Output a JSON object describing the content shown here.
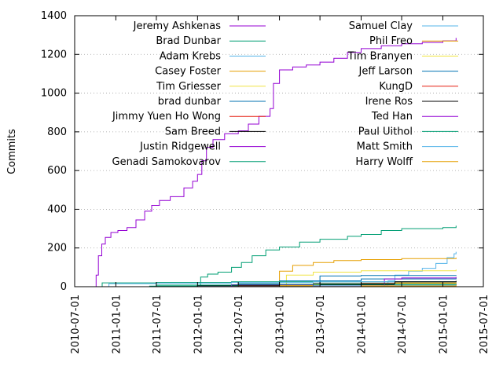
{
  "chart_data": {
    "type": "line",
    "ylabel": "Commits",
    "xlabel": "",
    "ylim": [
      0,
      1400
    ],
    "xlim": [
      "2010-07-01",
      "2015-07-01"
    ],
    "grid": true,
    "legend_position": "top, two columns",
    "x_ticks": [
      "2010-07-01",
      "2011-01-01",
      "2011-07-01",
      "2012-01-01",
      "2012-07-01",
      "2013-01-01",
      "2013-07-01",
      "2014-01-01",
      "2014-07-01",
      "2015-01-01",
      "2015-07-01"
    ],
    "y_ticks": [
      0,
      200,
      400,
      600,
      800,
      1000,
      1200,
      1400
    ],
    "series": [
      {
        "name": "Jeremy Ashkenas",
        "color": "#9400d3",
        "points": [
          [
            "2010-09-30",
            0
          ],
          [
            "2010-10-05",
            60
          ],
          [
            "2010-10-15",
            160
          ],
          [
            "2010-10-30",
            220
          ],
          [
            "2010-11-15",
            255
          ],
          [
            "2010-12-10",
            280
          ],
          [
            "2011-01-10",
            290
          ],
          [
            "2011-02-20",
            305
          ],
          [
            "2011-04-01",
            345
          ],
          [
            "2011-05-10",
            390
          ],
          [
            "2011-06-10",
            420
          ],
          [
            "2011-07-15",
            445
          ],
          [
            "2011-09-01",
            465
          ],
          [
            "2011-11-01",
            510
          ],
          [
            "2011-12-10",
            545
          ],
          [
            "2012-01-01",
            580
          ],
          [
            "2012-01-20",
            650
          ],
          [
            "2012-02-10",
            720
          ],
          [
            "2012-03-10",
            760
          ],
          [
            "2012-05-01",
            790
          ],
          [
            "2012-07-01",
            805
          ],
          [
            "2012-08-15",
            840
          ],
          [
            "2012-10-01",
            880
          ],
          [
            "2012-11-20",
            920
          ],
          [
            "2012-12-05",
            1050
          ],
          [
            "2013-01-01",
            1120
          ],
          [
            "2013-03-01",
            1135
          ],
          [
            "2013-05-01",
            1145
          ],
          [
            "2013-07-01",
            1160
          ],
          [
            "2013-09-01",
            1180
          ],
          [
            "2013-11-01",
            1210
          ],
          [
            "2014-01-01",
            1230
          ],
          [
            "2014-04-01",
            1245
          ],
          [
            "2014-07-01",
            1255
          ],
          [
            "2014-10-01",
            1262
          ],
          [
            "2015-01-01",
            1270
          ],
          [
            "2015-03-01",
            1285
          ]
        ]
      },
      {
        "name": "Brad Dunbar",
        "color": "#009e73",
        "points": [
          [
            "2011-01-01",
            0
          ],
          [
            "2011-06-01",
            3
          ],
          [
            "2012-01-01",
            8
          ],
          [
            "2012-01-15",
            50
          ],
          [
            "2012-02-15",
            65
          ],
          [
            "2012-04-01",
            75
          ],
          [
            "2012-06-01",
            100
          ],
          [
            "2012-07-15",
            125
          ],
          [
            "2012-09-01",
            160
          ],
          [
            "2012-11-01",
            190
          ],
          [
            "2013-01-01",
            205
          ],
          [
            "2013-04-01",
            230
          ],
          [
            "2013-07-01",
            245
          ],
          [
            "2013-11-01",
            260
          ],
          [
            "2014-01-01",
            270
          ],
          [
            "2014-04-01",
            290
          ],
          [
            "2014-07-01",
            300
          ],
          [
            "2015-01-01",
            305
          ],
          [
            "2015-03-01",
            315
          ]
        ]
      },
      {
        "name": "Adam Krebs",
        "color": "#56b4e9",
        "points": [
          [
            "2013-09-01",
            0
          ],
          [
            "2014-04-01",
            5
          ],
          [
            "2014-05-01",
            30
          ],
          [
            "2014-06-01",
            60
          ],
          [
            "2014-08-01",
            80
          ],
          [
            "2014-10-01",
            95
          ],
          [
            "2014-12-01",
            120
          ],
          [
            "2015-01-20",
            150
          ],
          [
            "2015-02-20",
            170
          ],
          [
            "2015-03-01",
            180
          ]
        ]
      },
      {
        "name": "Casey Foster",
        "color": "#e69f00",
        "points": [
          [
            "2012-12-01",
            0
          ],
          [
            "2013-01-01",
            80
          ],
          [
            "2013-03-01",
            110
          ],
          [
            "2013-06-01",
            125
          ],
          [
            "2013-09-01",
            135
          ],
          [
            "2014-01-01",
            140
          ],
          [
            "2014-07-01",
            145
          ],
          [
            "2015-03-01",
            150
          ]
        ]
      },
      {
        "name": "Tim Griesser",
        "color": "#f0e442",
        "points": [
          [
            "2013-01-01",
            0
          ],
          [
            "2013-02-01",
            60
          ],
          [
            "2013-06-01",
            75
          ],
          [
            "2014-01-01",
            82
          ],
          [
            "2015-03-01",
            88
          ]
        ]
      },
      {
        "name": "brad dunbar",
        "color": "#0072b2",
        "points": [
          [
            "2011-06-01",
            0
          ],
          [
            "2012-01-01",
            5
          ],
          [
            "2012-07-01",
            15
          ],
          [
            "2013-01-01",
            30
          ],
          [
            "2014-01-01",
            40
          ],
          [
            "2015-03-01",
            45
          ]
        ]
      },
      {
        "name": "Jimmy Yuen Ho Wong",
        "color": "#e51e10",
        "points": [
          [
            "2012-01-01",
            0
          ],
          [
            "2012-07-01",
            5
          ],
          [
            "2013-01-01",
            10
          ],
          [
            "2014-01-01",
            18
          ],
          [
            "2015-03-01",
            20
          ]
        ]
      },
      {
        "name": "Sam Breed",
        "color": "#000000",
        "points": [
          [
            "2011-07-01",
            0
          ],
          [
            "2012-01-01",
            5
          ],
          [
            "2013-07-01",
            10
          ],
          [
            "2015-03-01",
            12
          ]
        ]
      },
      {
        "name": "Justin Ridgewell",
        "color": "#9400d3",
        "points": [
          [
            "2014-04-01",
            0
          ],
          [
            "2014-04-15",
            40
          ],
          [
            "2014-07-01",
            45
          ],
          [
            "2015-03-01",
            50
          ]
        ]
      },
      {
        "name": "Genadi Samokovarov",
        "color": "#009e73",
        "points": [
          [
            "2010-10-01",
            0
          ],
          [
            "2010-11-01",
            20
          ],
          [
            "2011-07-01",
            22
          ],
          [
            "2012-06-01",
            25
          ],
          [
            "2015-03-01",
            28
          ]
        ]
      },
      {
        "name": "Samuel Clay",
        "color": "#56b4e9",
        "points": [
          [
            "2010-10-01",
            0
          ],
          [
            "2010-12-01",
            15
          ],
          [
            "2011-07-01",
            18
          ],
          [
            "2012-06-01",
            22
          ],
          [
            "2013-06-01",
            25
          ],
          [
            "2015-03-01",
            27
          ]
        ]
      },
      {
        "name": "Phil Freo",
        "color": "#e69f00",
        "points": [
          [
            "2012-07-01",
            0
          ],
          [
            "2013-01-01",
            5
          ],
          [
            "2013-06-01",
            15
          ],
          [
            "2014-06-01",
            20
          ],
          [
            "2015-03-01",
            22
          ]
        ]
      },
      {
        "name": "Tim Branyen",
        "color": "#f0e442",
        "points": [
          [
            "2012-01-01",
            0
          ],
          [
            "2012-07-01",
            10
          ],
          [
            "2013-07-01",
            15
          ],
          [
            "2015-03-01",
            18
          ]
        ]
      },
      {
        "name": "Jeff Larson",
        "color": "#0072b2",
        "points": [
          [
            "2013-01-01",
            0
          ],
          [
            "2013-07-01",
            55
          ],
          [
            "2014-01-01",
            58
          ],
          [
            "2015-03-01",
            60
          ]
        ]
      },
      {
        "name": "KungD",
        "color": "#e51e10",
        "points": [
          [
            "2013-01-01",
            0
          ],
          [
            "2013-06-01",
            5
          ],
          [
            "2014-06-01",
            8
          ],
          [
            "2015-03-01",
            10
          ]
        ]
      },
      {
        "name": "Irene Ros",
        "color": "#000000",
        "points": [
          [
            "2012-11-01",
            0
          ],
          [
            "2013-06-01",
            15
          ],
          [
            "2014-06-01",
            25
          ],
          [
            "2015-03-01",
            30
          ]
        ]
      },
      {
        "name": "Ted Han",
        "color": "#9400d3",
        "points": [
          [
            "2011-06-01",
            0
          ],
          [
            "2012-06-01",
            10
          ],
          [
            "2013-06-01",
            12
          ],
          [
            "2015-03-01",
            14
          ]
        ]
      },
      {
        "name": "Paul Uithol",
        "color": "#009e73",
        "points": [
          [
            "2011-01-01",
            0
          ],
          [
            "2011-07-01",
            8
          ],
          [
            "2012-07-01",
            12
          ],
          [
            "2015-03-01",
            14
          ]
        ]
      },
      {
        "name": "Matt Smith",
        "color": "#56b4e9",
        "points": [
          [
            "2012-11-01",
            0
          ],
          [
            "2013-06-01",
            5
          ],
          [
            "2014-06-01",
            8
          ],
          [
            "2015-03-01",
            10
          ]
        ]
      },
      {
        "name": "Harry Wolff",
        "color": "#e69f00",
        "points": [
          [
            "2013-06-01",
            0
          ],
          [
            "2014-01-01",
            4
          ],
          [
            "2015-03-01",
            8
          ]
        ]
      }
    ]
  }
}
